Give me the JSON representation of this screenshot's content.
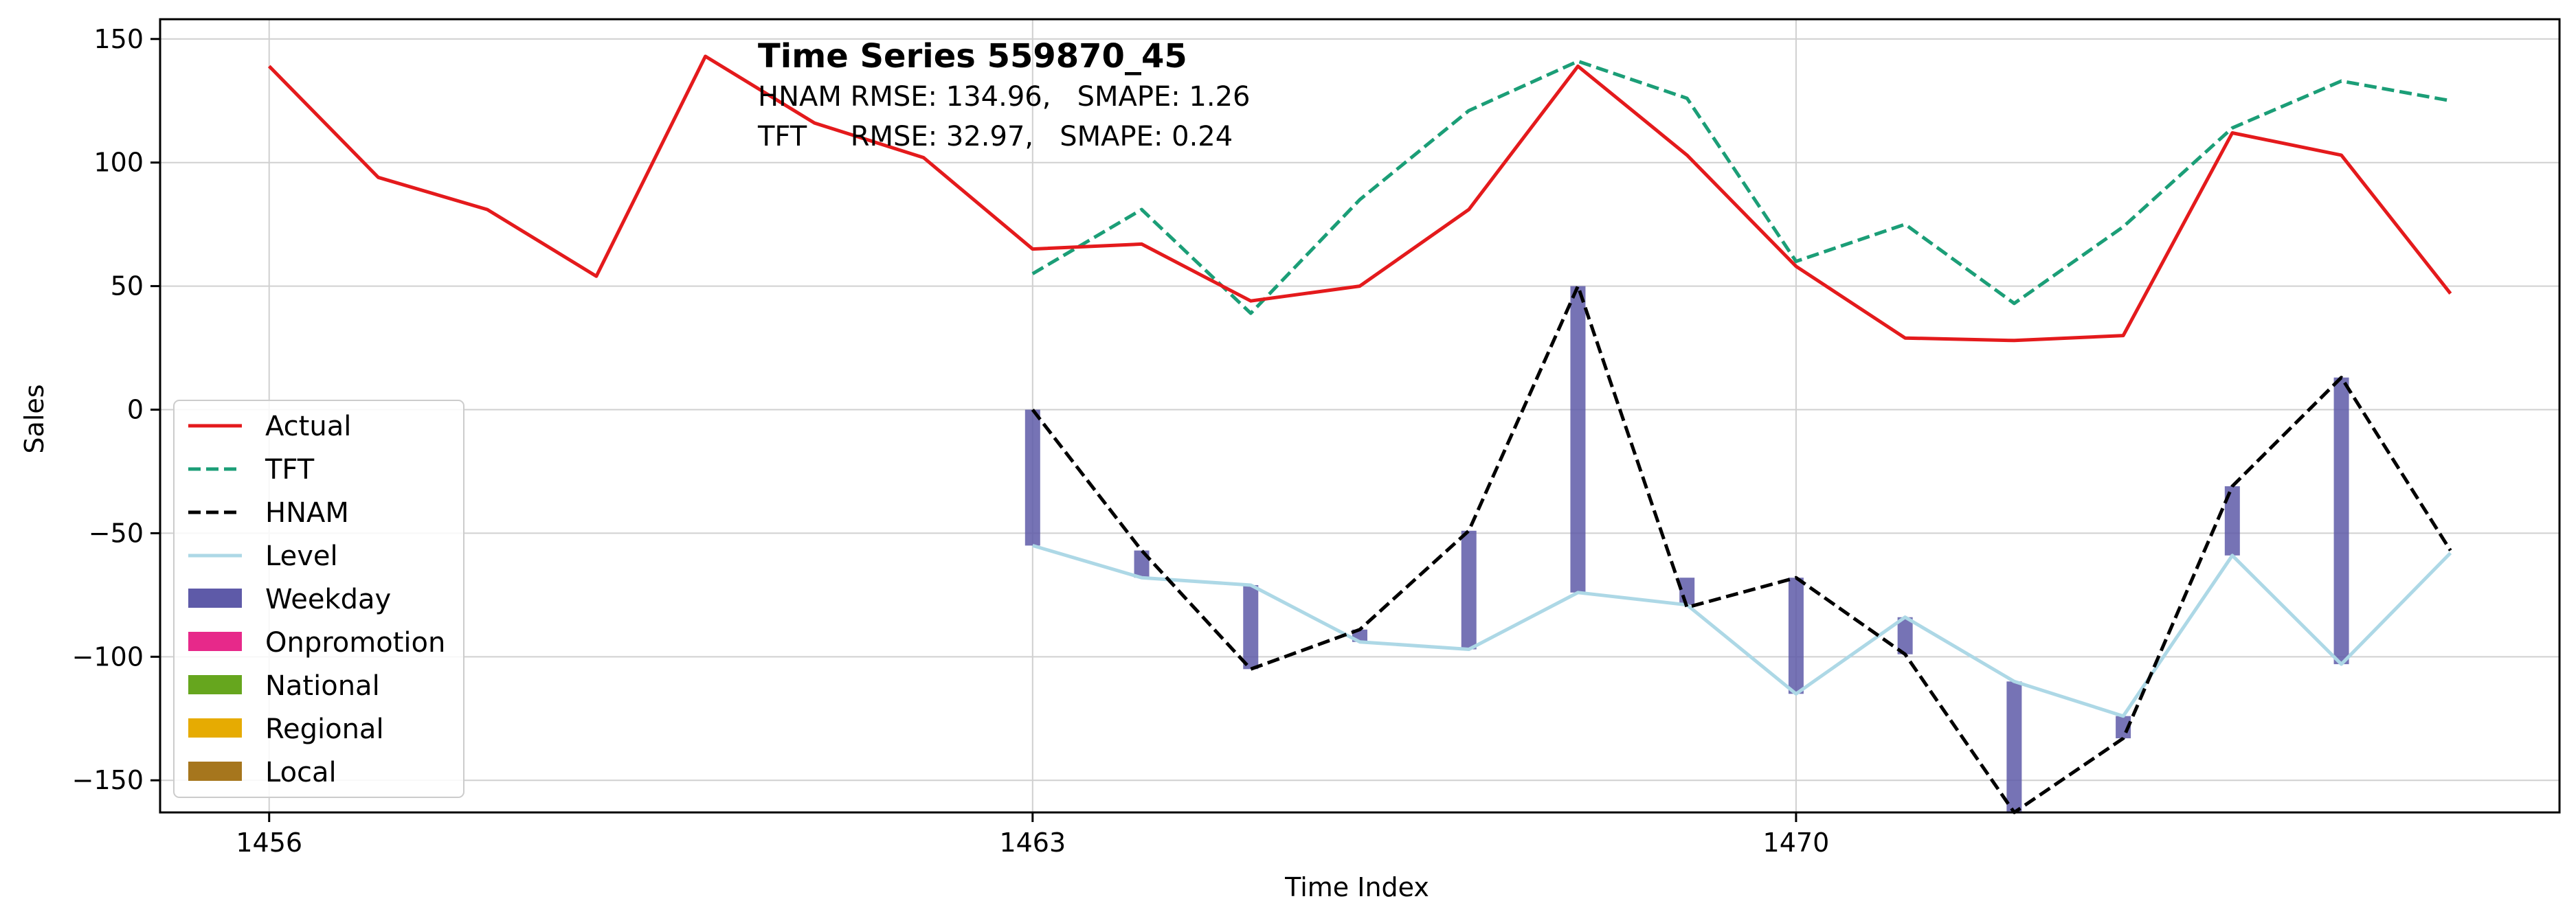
{
  "colors": {
    "actual": "#e41a1c",
    "tft": "#1b9e77",
    "hnam": "#000000",
    "level": "#add8e6",
    "weekday": "#5e5aa8",
    "onpromotion": "#e7298a",
    "national": "#66a61e",
    "regional": "#e6ab02",
    "local": "#a6761d",
    "grid": "#d0d0d0"
  },
  "chart_data": {
    "type": "line",
    "title": "Time Series 559870_45",
    "metrics": [
      "HNAM RMSE: 134.96,   SMAPE: 1.26",
      "TFT     RMSE: 32.97,   SMAPE: 0.24"
    ],
    "xlabel": "Time Index",
    "ylabel": "Sales",
    "xlim": [
      1455,
      1477
    ],
    "ylim": [
      -163,
      158
    ],
    "xticks": [
      1456,
      1463,
      1470
    ],
    "yticks": [
      150,
      100,
      50,
      0,
      -50,
      -100,
      -150
    ],
    "ytick_labels": [
      "150",
      "100",
      "50",
      "0",
      "−50",
      "−100",
      "−150"
    ],
    "grid": true,
    "legend_position": "lower-left",
    "series": [
      {
        "name": "Actual",
        "style": "solid",
        "x": [
          1456,
          1457,
          1458,
          1459,
          1460,
          1461,
          1462,
          1463,
          1464,
          1465,
          1466,
          1467,
          1468,
          1469,
          1470,
          1471,
          1472,
          1473,
          1474,
          1475,
          1476
        ],
        "values": [
          139,
          94,
          81,
          54,
          143,
          116,
          102,
          65,
          67,
          44,
          50,
          81,
          139,
          103,
          58,
          29,
          28,
          30,
          112,
          103,
          47
        ]
      },
      {
        "name": "TFT",
        "style": "dashed",
        "x": [
          1463,
          1464,
          1465,
          1466,
          1467,
          1468,
          1469,
          1470,
          1471,
          1472,
          1473,
          1474,
          1475,
          1476
        ],
        "values": [
          55,
          81,
          39,
          85,
          121,
          141,
          126,
          60,
          75,
          43,
          74,
          114,
          133,
          125
        ]
      },
      {
        "name": "HNAM",
        "style": "dashed",
        "x": [
          1463,
          1464,
          1465,
          1466,
          1467,
          1468,
          1469,
          1470,
          1471,
          1472,
          1473,
          1474,
          1475,
          1476
        ],
        "values": [
          0,
          -57,
          -105,
          -89,
          -49,
          50,
          -80,
          -68,
          -99,
          -164,
          -133,
          -31,
          13,
          -57
        ]
      },
      {
        "name": "Level",
        "style": "solid",
        "x": [
          1463,
          1464,
          1465,
          1466,
          1467,
          1468,
          1469,
          1470,
          1471,
          1472,
          1473,
          1474,
          1475,
          1476
        ],
        "values": [
          -55,
          -68,
          -71,
          -94,
          -97,
          -74,
          -79,
          -115,
          -84,
          -110,
          -124,
          -59,
          -103,
          -58
        ]
      }
    ],
    "components": [
      {
        "name": "Weekday",
        "x": [
          1463,
          1464,
          1465,
          1466,
          1467,
          1468,
          1469,
          1470,
          1471,
          1472,
          1473,
          1474,
          1475
        ],
        "bottom": [
          -55,
          -68,
          -71,
          -94,
          -97,
          -74,
          -79,
          -115,
          -84,
          -110,
          -124,
          -59,
          -103
        ],
        "top": [
          0,
          -57,
          -105,
          -89,
          -49,
          50,
          -68,
          -68,
          -99,
          -164,
          -133,
          -31,
          13
        ]
      },
      {
        "name": "Onpromotion",
        "x": [],
        "bottom": [],
        "top": []
      },
      {
        "name": "National",
        "x": [],
        "bottom": [],
        "top": []
      },
      {
        "name": "Regional",
        "x": [],
        "bottom": [],
        "top": []
      },
      {
        "name": "Local",
        "x": [],
        "bottom": [],
        "top": []
      }
    ]
  }
}
